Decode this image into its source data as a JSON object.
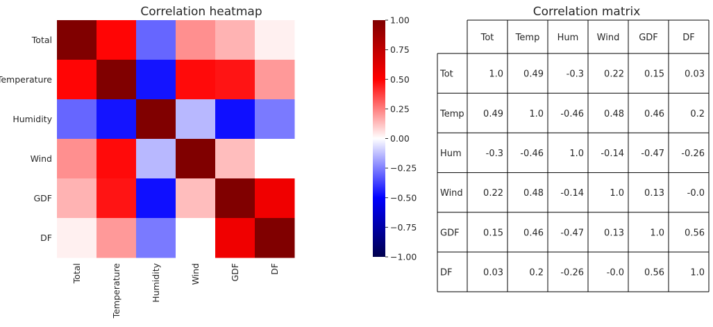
{
  "chart_data": [
    {
      "type": "heatmap",
      "title": "Correlation heatmap",
      "rows": [
        "Total",
        "Temperature",
        "Humidity",
        "Wind",
        "GDF",
        "DF"
      ],
      "columns": [
        "Total",
        "Temperature",
        "Humidity",
        "Wind",
        "GDF",
        "DF"
      ],
      "values": [
        [
          1.0,
          0.49,
          -0.3,
          0.22,
          0.15,
          0.03
        ],
        [
          0.49,
          1.0,
          -0.46,
          0.48,
          0.46,
          0.2
        ],
        [
          -0.3,
          -0.46,
          1.0,
          -0.14,
          -0.47,
          -0.26
        ],
        [
          0.22,
          0.48,
          -0.14,
          1.0,
          0.13,
          -0.0
        ],
        [
          0.15,
          0.46,
          -0.47,
          0.13,
          1.0,
          0.56
        ],
        [
          0.03,
          0.2,
          -0.26,
          -0.0,
          0.56,
          1.0
        ]
      ],
      "colormap": "seismic",
      "vmin": -1.0,
      "vmax": 1.0,
      "colorbar_ticks": [
        "1.00",
        "0.75",
        "0.50",
        "0.25",
        "0.00",
        "−0.25",
        "−0.50",
        "−0.75",
        "−1.00"
      ],
      "colorbar_tick_values": [
        1.0,
        0.75,
        0.5,
        0.25,
        0.0,
        -0.25,
        -0.5,
        -0.75,
        -1.0
      ]
    },
    {
      "type": "table",
      "title": "Correlation matrix",
      "columns": [
        "Tot",
        "Temp",
        "Hum",
        "Wind",
        "GDF",
        "DF"
      ],
      "rows": [
        "Tot",
        "Temp",
        "Hum",
        "Wind",
        "GDF",
        "DF"
      ],
      "cells": [
        [
          "1.0",
          "0.49",
          "-0.3",
          "0.22",
          "0.15",
          "0.03"
        ],
        [
          "0.49",
          "1.0",
          "-0.46",
          "0.48",
          "0.46",
          "0.2"
        ],
        [
          "-0.3",
          "-0.46",
          "1.0",
          "-0.14",
          "-0.47",
          "-0.26"
        ],
        [
          "0.22",
          "0.48",
          "-0.14",
          "1.0",
          "0.13",
          "-0.0"
        ],
        [
          "0.15",
          "0.46",
          "-0.47",
          "0.13",
          "1.0",
          "0.56"
        ],
        [
          "0.03",
          "0.2",
          "-0.26",
          "-0.0",
          "0.56",
          "1.0"
        ]
      ]
    }
  ]
}
